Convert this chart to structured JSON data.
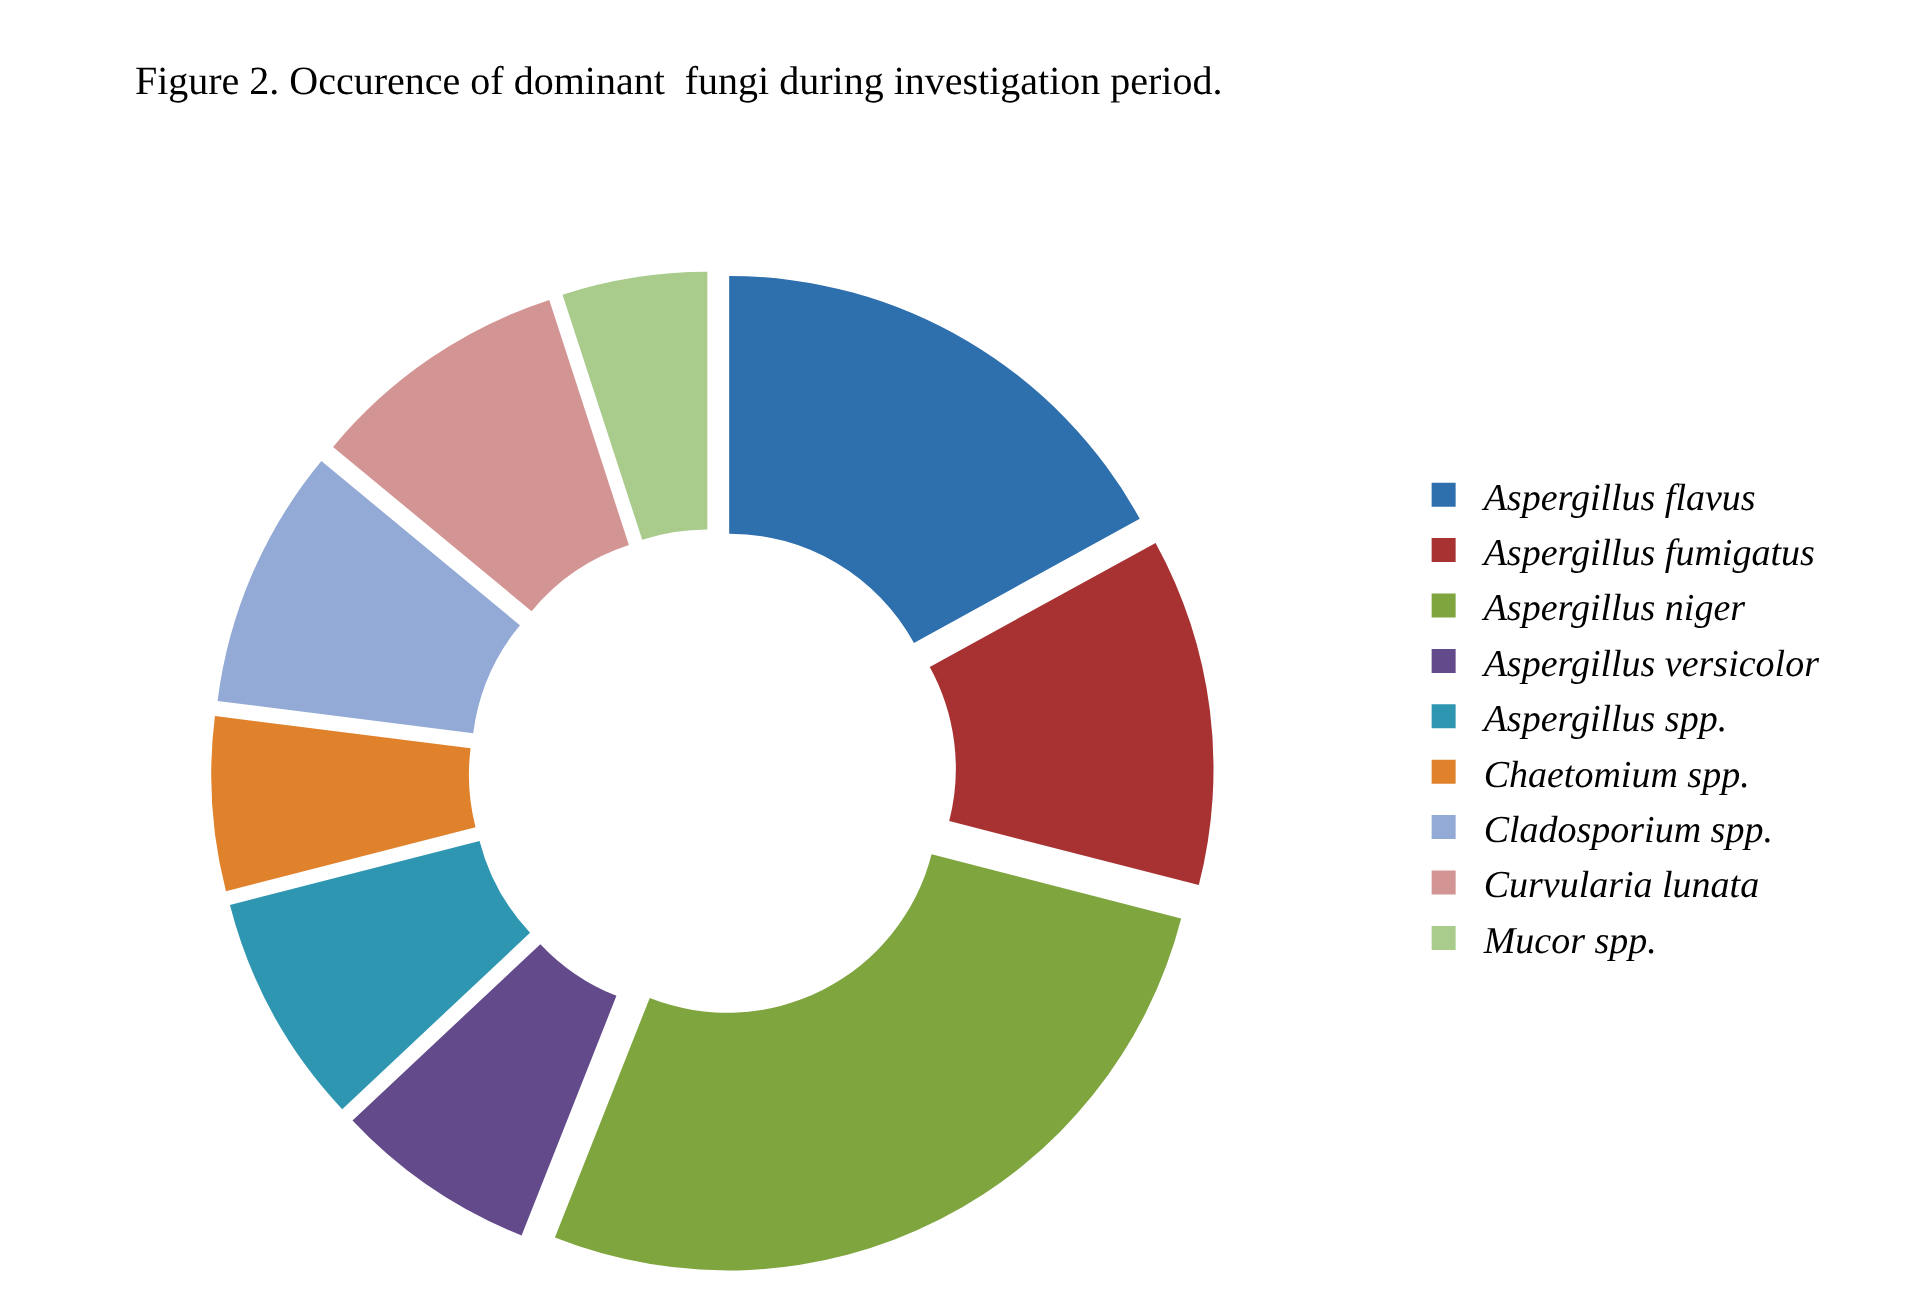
{
  "chart_data": {
    "type": "donut",
    "title": "Figure 2. Occurence of dominant  fungi during investigation period.",
    "categories": [
      "Aspergillus flavus",
      "Aspergillus fumigatus",
      "Aspergillus niger",
      "Aspergillus versicolor",
      "Aspergillus spp.",
      "Chaetomium spp.",
      "Cladosporium spp.",
      "Curvularia lunata",
      "Mucor spp."
    ],
    "values": [
      17,
      12,
      27,
      7,
      8,
      6,
      9,
      9,
      5
    ],
    "colors": [
      "#2e6fae",
      "#a83232",
      "#7fa53f",
      "#634a8a",
      "#2e96b0",
      "#e0822b",
      "#93a9d6",
      "#d39594",
      "#a9cb8c"
    ],
    "legend": "right"
  }
}
